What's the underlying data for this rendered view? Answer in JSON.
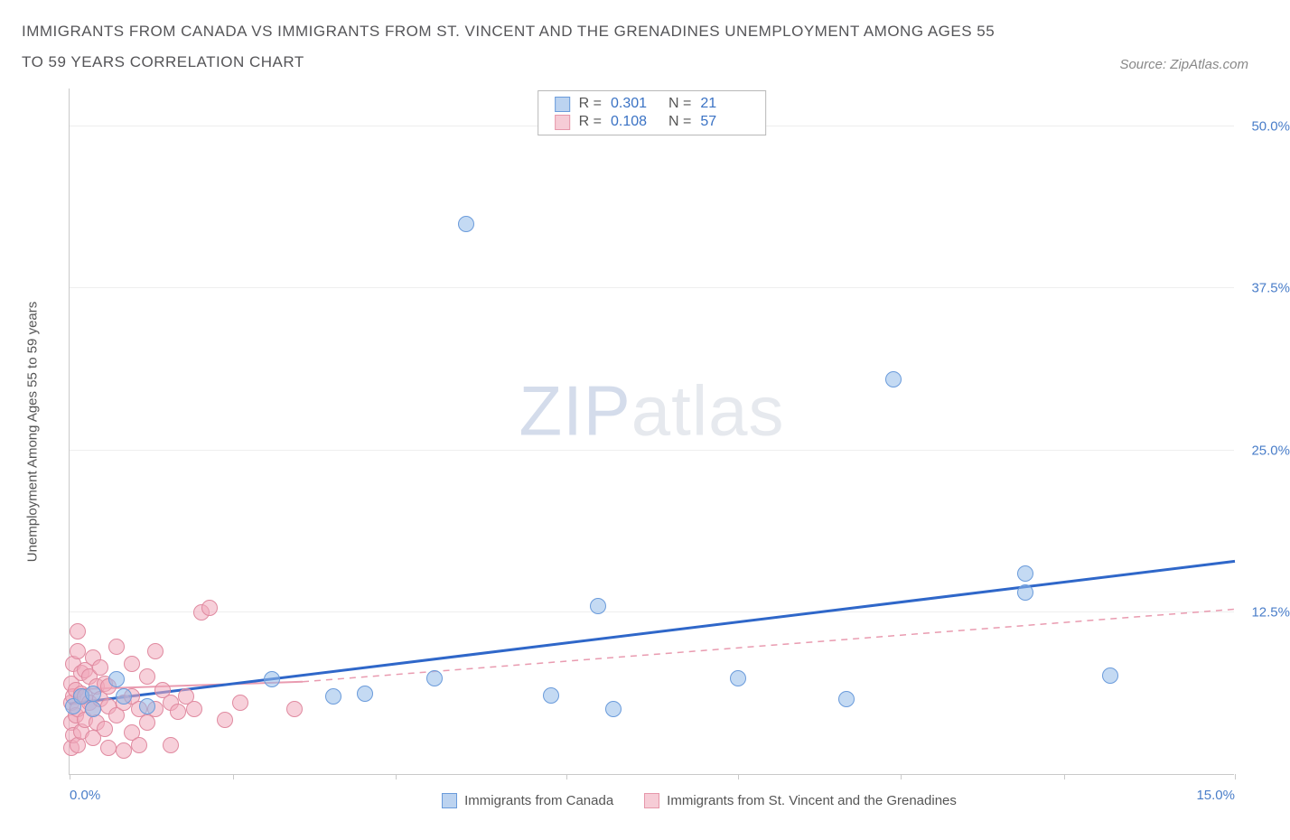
{
  "title": "IMMIGRANTS FROM CANADA VS IMMIGRANTS FROM ST. VINCENT AND THE GRENADINES UNEMPLOYMENT AMONG AGES 55 TO 59 YEARS CORRELATION CHART",
  "source_label": "Source: ZipAtlas.com",
  "watermark_a": "ZIP",
  "watermark_b": "atlas",
  "chart": {
    "type": "scatter",
    "y_axis_label": "Unemployment Among Ages 55 to 59 years",
    "xlim": [
      0,
      15
    ],
    "ylim": [
      0,
      53
    ],
    "x_ticks": [
      0.0,
      2.1,
      4.2,
      6.4,
      8.6,
      10.7,
      12.8,
      15.0
    ],
    "x_tick_labels_shown": {
      "0": "0.0%",
      "15": "15.0%"
    },
    "y_ticks": [
      12.5,
      25.0,
      37.5,
      50.0
    ],
    "y_tick_labels": [
      "12.5%",
      "25.0%",
      "37.5%",
      "50.0%"
    ],
    "grid_color": "#eeeeee",
    "axis_color": "#c9c9c9",
    "tick_label_color": "#4a7ec9",
    "background_color": "#ffffff",
    "marker_radius_blue": 9,
    "marker_radius_pink": 9,
    "stats": [
      {
        "r": "0.301",
        "n": "21",
        "fill": "#bcd3f0",
        "stroke": "#6a9bdb"
      },
      {
        "r": "0.108",
        "n": "57",
        "fill": "#f6ccd6",
        "stroke": "#e697aa"
      }
    ],
    "legend": [
      {
        "label": "Immigrants from Canada",
        "fill": "#bcd3f0",
        "stroke": "#6a9bdb"
      },
      {
        "label": "Immigrants from St. Vincent and the Grenadines",
        "fill": "#f6ccd6",
        "stroke": "#e697aa"
      }
    ],
    "series_blue": {
      "fill": "rgba(148,187,233,0.55)",
      "stroke": "#6a9bdb",
      "trend_color": "#2f67c9",
      "trend_width": 3,
      "trend": {
        "x1": 0,
        "y1": 5.5,
        "x2": 15,
        "y2": 16.5
      },
      "points": [
        [
          0.05,
          5.2
        ],
        [
          0.15,
          6.0
        ],
        [
          0.3,
          5.0
        ],
        [
          0.3,
          6.2
        ],
        [
          0.6,
          7.3
        ],
        [
          0.7,
          6.0
        ],
        [
          1.0,
          5.2
        ],
        [
          2.6,
          7.3
        ],
        [
          3.4,
          6.0
        ],
        [
          3.8,
          6.2
        ],
        [
          4.7,
          7.4
        ],
        [
          5.1,
          42.5
        ],
        [
          6.2,
          6.1
        ],
        [
          6.8,
          13.0
        ],
        [
          7.0,
          5.0
        ],
        [
          8.6,
          7.4
        ],
        [
          10.0,
          5.8
        ],
        [
          10.6,
          30.5
        ],
        [
          12.3,
          15.5
        ],
        [
          12.3,
          14.0
        ],
        [
          13.4,
          7.6
        ]
      ]
    },
    "series_pink": {
      "fill": "rgba(240,170,188,0.55)",
      "stroke": "#e08aa0",
      "trend_color": "#e99bb0",
      "trend_width": 2,
      "trend_solid": {
        "x1": 0,
        "y1": 6.6,
        "x2": 3.0,
        "y2": 7.2
      },
      "trend_dash": {
        "x1": 3.0,
        "y1": 7.2,
        "x2": 15,
        "y2": 12.8
      },
      "points": [
        [
          0.02,
          2.0
        ],
        [
          0.02,
          4.0
        ],
        [
          0.02,
          5.5
        ],
        [
          0.02,
          7.0
        ],
        [
          0.05,
          3.0
        ],
        [
          0.05,
          6.0
        ],
        [
          0.05,
          8.5
        ],
        [
          0.08,
          4.5
        ],
        [
          0.08,
          6.5
        ],
        [
          0.1,
          2.2
        ],
        [
          0.1,
          5.0
        ],
        [
          0.1,
          9.5
        ],
        [
          0.1,
          11.0
        ],
        [
          0.15,
          3.3
        ],
        [
          0.15,
          6.2
        ],
        [
          0.15,
          7.8
        ],
        [
          0.2,
          4.2
        ],
        [
          0.2,
          6.0
        ],
        [
          0.2,
          8.0
        ],
        [
          0.25,
          5.5
        ],
        [
          0.25,
          7.5
        ],
        [
          0.3,
          2.8
        ],
        [
          0.3,
          5.0
        ],
        [
          0.3,
          9.0
        ],
        [
          0.35,
          4.0
        ],
        [
          0.35,
          6.8
        ],
        [
          0.4,
          5.8
        ],
        [
          0.4,
          8.2
        ],
        [
          0.45,
          3.5
        ],
        [
          0.45,
          7.0
        ],
        [
          0.5,
          2.0
        ],
        [
          0.5,
          5.2
        ],
        [
          0.5,
          6.8
        ],
        [
          0.6,
          4.5
        ],
        [
          0.6,
          9.8
        ],
        [
          0.7,
          1.8
        ],
        [
          0.7,
          5.5
        ],
        [
          0.8,
          3.2
        ],
        [
          0.8,
          6.0
        ],
        [
          0.8,
          8.5
        ],
        [
          0.9,
          2.2
        ],
        [
          0.9,
          5.0
        ],
        [
          1.0,
          4.0
        ],
        [
          1.0,
          7.5
        ],
        [
          1.1,
          5.0
        ],
        [
          1.1,
          9.5
        ],
        [
          1.2,
          6.5
        ],
        [
          1.3,
          2.2
        ],
        [
          1.3,
          5.5
        ],
        [
          1.4,
          4.8
        ],
        [
          1.5,
          6.0
        ],
        [
          1.6,
          5.0
        ],
        [
          1.7,
          12.5
        ],
        [
          1.8,
          12.8
        ],
        [
          2.0,
          4.2
        ],
        [
          2.2,
          5.5
        ],
        [
          2.9,
          5.0
        ]
      ]
    }
  }
}
